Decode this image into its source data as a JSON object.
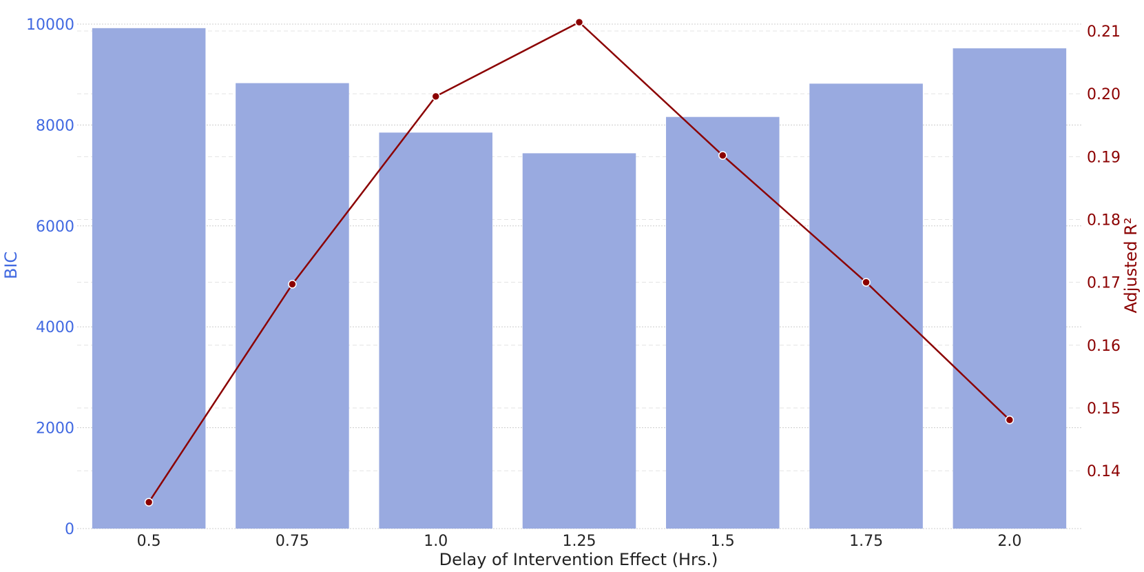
{
  "chart_data": {
    "type": "bar+line",
    "categories": [
      "0.5",
      "0.75",
      "1.0",
      "1.25",
      "1.5",
      "1.75",
      "2.0"
    ],
    "series": [
      {
        "type": "bar",
        "axis": "left",
        "values": [
          9920,
          8830,
          7850,
          7440,
          8160,
          8820,
          9520
        ],
        "color": "#99aae0"
      },
      {
        "type": "line",
        "axis": "right",
        "values": [
          0.135,
          0.1697,
          0.1996,
          0.2114,
          0.1902,
          0.17,
          0.1481
        ],
        "color": "#8b0000"
      }
    ],
    "xlabel": "Delay of Intervention Effect (Hrs.)",
    "ylabel_left": "BIC",
    "ylabel_right": "Adjusted R²",
    "ylim_left": [
      0,
      10000
    ],
    "yticks_left": [
      "0",
      "2000",
      "4000",
      "6000",
      "8000",
      "10000"
    ],
    "ylim_right": [
      0.1308,
      0.2111
    ],
    "yticks_right": [
      "0.14",
      "0.15",
      "0.16",
      "0.17",
      "0.18",
      "0.19",
      "0.20",
      "0.21"
    ],
    "grid": true,
    "colors": {
      "left_axis": "#4169e1",
      "right_axis": "#8b0000",
      "bars": "#99aae0",
      "line": "#8b0000"
    }
  }
}
